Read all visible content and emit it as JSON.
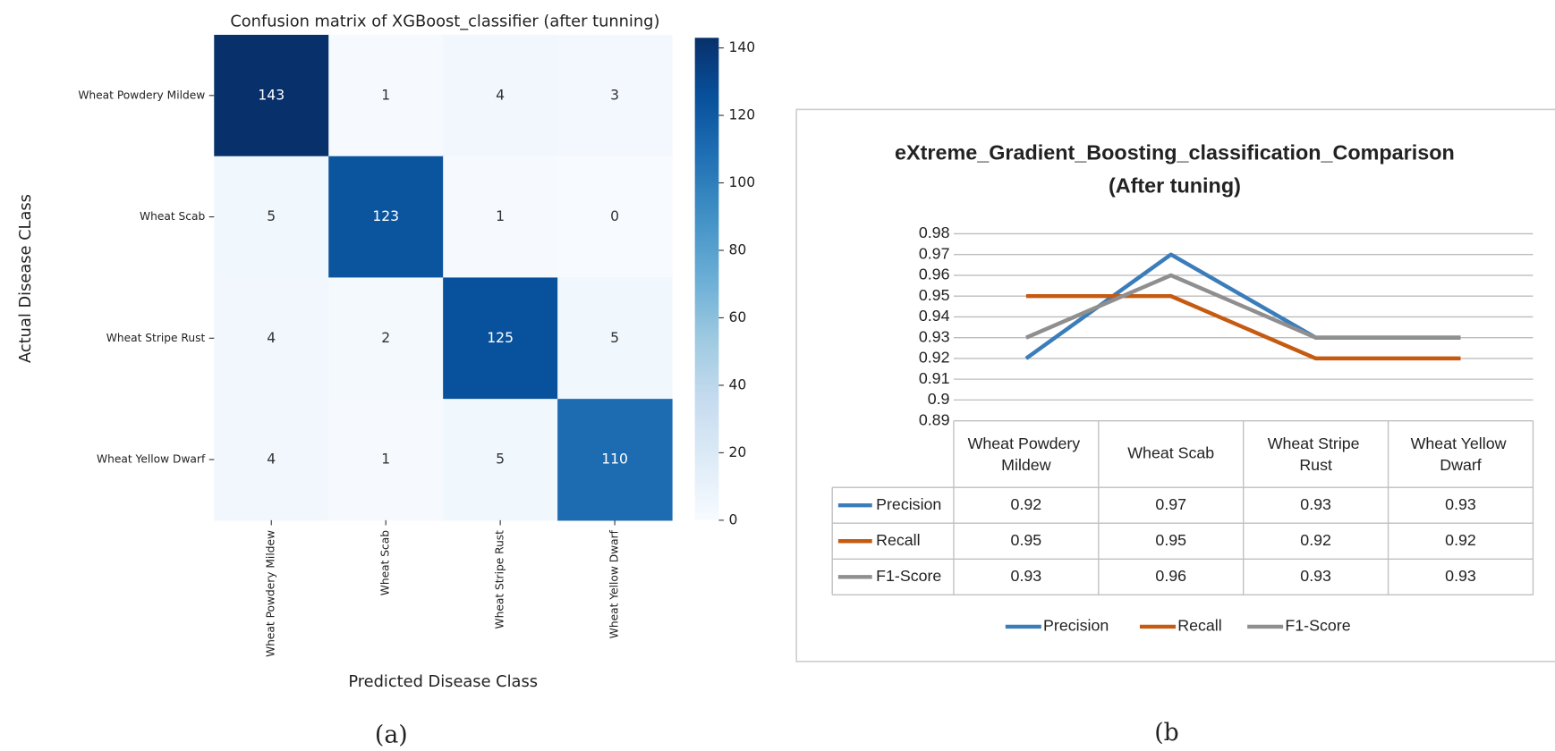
{
  "chart_data": [
    {
      "type": "heatmap",
      "title": "Confusion matrix of XGBoost_classifier (after tunning)",
      "x_label": "Predicted Disease Class",
      "y_label": "Actual Disease CLass",
      "categories": [
        "Wheat Powdery Mildew",
        "Wheat Scab",
        "Wheat Stripe Rust",
        "Wheat Yellow Dwarf"
      ],
      "values": [
        [
          143,
          1,
          4,
          3
        ],
        [
          5,
          123,
          1,
          0
        ],
        [
          4,
          2,
          125,
          5
        ],
        [
          4,
          1,
          5,
          110
        ]
      ],
      "clim": [
        0,
        143
      ],
      "cticks": [
        0,
        20,
        40,
        60,
        80,
        100,
        120,
        140
      ],
      "colormap": [
        "#f7fbff",
        "#deebf7",
        "#c6dbef",
        "#9ecae1",
        "#6baed6",
        "#4292c6",
        "#2171b5",
        "#08519c",
        "#08306b"
      ],
      "caption": "(a)"
    },
    {
      "type": "line",
      "title": "eXtreme_Gradient_Boosting_classification_Comparison",
      "subtitle": "(After tuning)",
      "categories": [
        "Wheat Powdery Mildew",
        "Wheat Scab",
        "Wheat Stripe Rust",
        "Wheat Yellow Dwarf"
      ],
      "series": [
        {
          "name": "Precision",
          "color": "#3b7dba",
          "values": [
            0.92,
            0.97,
            0.93,
            0.93
          ]
        },
        {
          "name": "Recall",
          "color": "#c55a11",
          "values": [
            0.95,
            0.95,
            0.92,
            0.92
          ]
        },
        {
          "name": "F1-Score",
          "color": "#8f8f8f",
          "values": [
            0.93,
            0.96,
            0.93,
            0.93
          ]
        }
      ],
      "ylim": [
        0.89,
        0.98
      ],
      "yticks": [
        0.89,
        0.9,
        0.91,
        0.92,
        0.93,
        0.94,
        0.95,
        0.96,
        0.97,
        0.98
      ],
      "grid": true,
      "legend": "bottom",
      "caption": "(b"
    }
  ]
}
